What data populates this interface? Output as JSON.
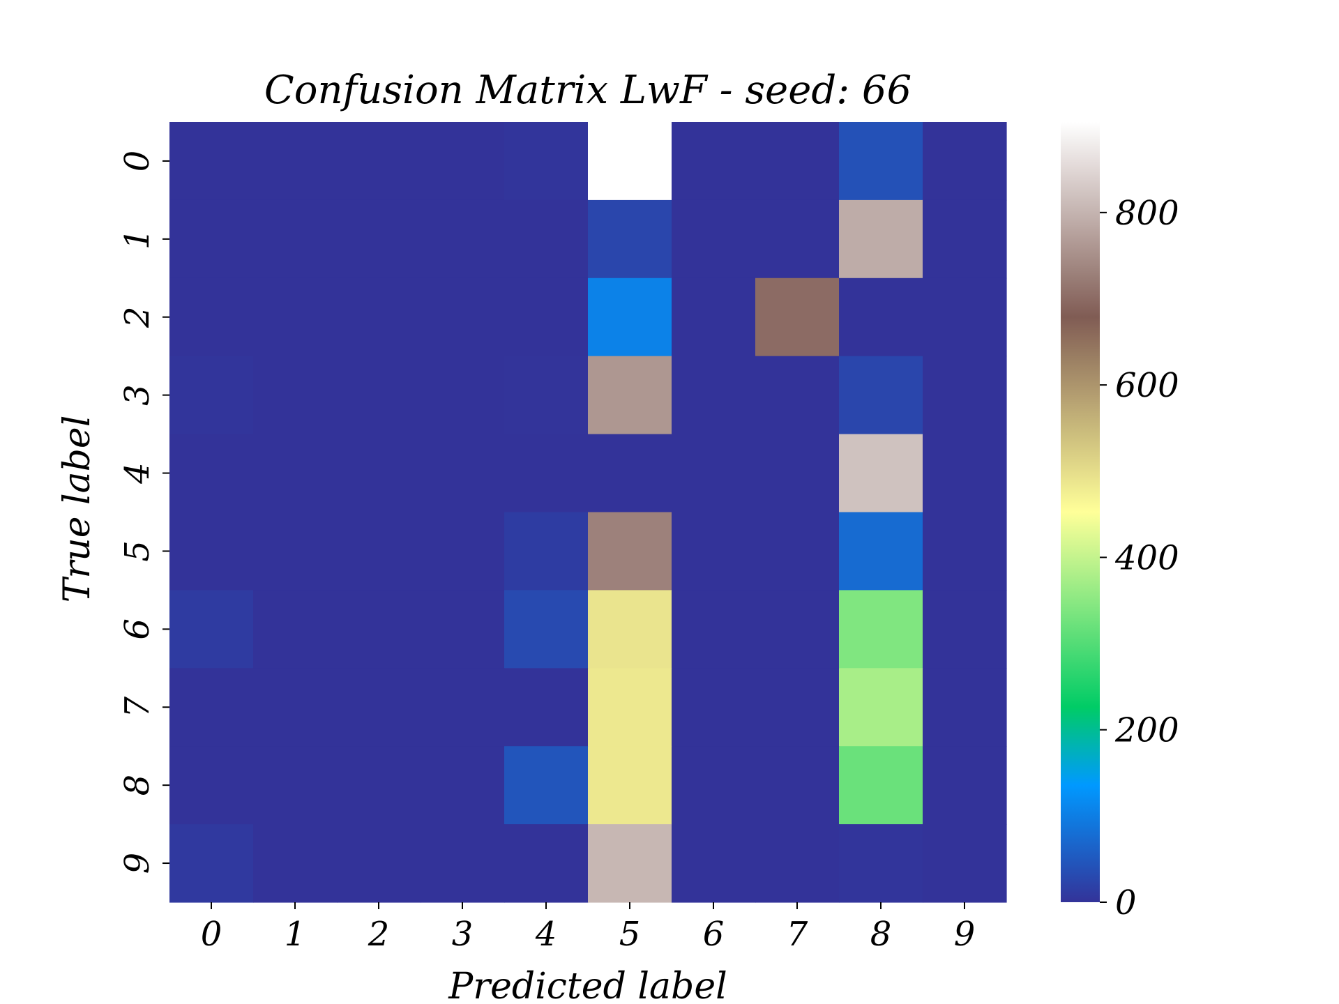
{
  "chart_data": {
    "type": "heatmap",
    "title": "Confusion Matrix LwF - seed: 66",
    "xlabel": "Predicted label",
    "ylabel": "True label",
    "x_categories": [
      "0",
      "1",
      "2",
      "3",
      "4",
      "5",
      "6",
      "7",
      "8",
      "9"
    ],
    "y_categories": [
      "0",
      "1",
      "2",
      "3",
      "4",
      "5",
      "6",
      "7",
      "8",
      "9"
    ],
    "values": [
      [
        0,
        0,
        0,
        0,
        2,
        905,
        0,
        0,
        40,
        0
      ],
      [
        0,
        0,
        0,
        0,
        0,
        25,
        0,
        0,
        790,
        0
      ],
      [
        0,
        0,
        0,
        0,
        0,
        105,
        0,
        700,
        0,
        0
      ],
      [
        2,
        0,
        0,
        0,
        1,
        760,
        0,
        0,
        25,
        0
      ],
      [
        0,
        0,
        0,
        0,
        0,
        0,
        0,
        0,
        820,
        0
      ],
      [
        0,
        0,
        0,
        0,
        12,
        730,
        0,
        0,
        75,
        0
      ],
      [
        10,
        0,
        0,
        0,
        30,
        490,
        0,
        0,
        340,
        0
      ],
      [
        0,
        0,
        0,
        0,
        0,
        485,
        0,
        0,
        375,
        0
      ],
      [
        0,
        0,
        0,
        0,
        45,
        485,
        0,
        0,
        320,
        0
      ],
      [
        8,
        0,
        0,
        0,
        0,
        805,
        0,
        0,
        3,
        0
      ]
    ],
    "colormap": "terrain",
    "colorbar": {
      "min": 0,
      "max": 905,
      "ticks": [
        0,
        200,
        400,
        600,
        800
      ]
    },
    "grid": false
  }
}
